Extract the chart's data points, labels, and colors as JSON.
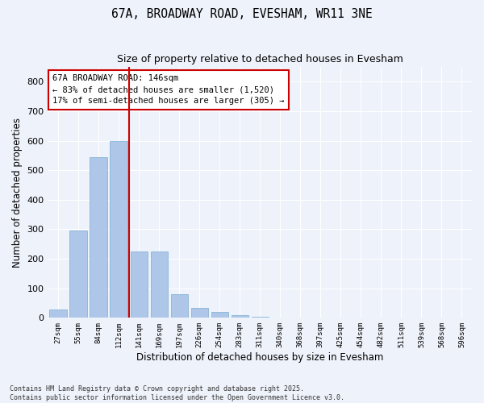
{
  "title": "67A, BROADWAY ROAD, EVESHAM, WR11 3NE",
  "subtitle": "Size of property relative to detached houses in Evesham",
  "xlabel": "Distribution of detached houses by size in Evesham",
  "ylabel": "Number of detached properties",
  "bar_color": "#aec6e8",
  "bar_edge_color": "#7aadd4",
  "background_color": "#eef2fa",
  "grid_color": "#ffffff",
  "bins": [
    "27sqm",
    "55sqm",
    "84sqm",
    "112sqm",
    "141sqm",
    "169sqm",
    "197sqm",
    "226sqm",
    "254sqm",
    "283sqm",
    "311sqm",
    "340sqm",
    "368sqm",
    "397sqm",
    "425sqm",
    "454sqm",
    "482sqm",
    "511sqm",
    "539sqm",
    "568sqm",
    "596sqm"
  ],
  "values": [
    27,
    295,
    545,
    600,
    225,
    225,
    80,
    35,
    20,
    10,
    5,
    0,
    0,
    0,
    0,
    0,
    0,
    0,
    0,
    0,
    0
  ],
  "ylim": [
    0,
    850
  ],
  "yticks": [
    0,
    100,
    200,
    300,
    400,
    500,
    600,
    700,
    800
  ],
  "vline_index": 3.5,
  "vline_color": "#cc0000",
  "annotation_title": "67A BROADWAY ROAD: 146sqm",
  "annotation_line1": "← 83% of detached houses are smaller (1,520)",
  "annotation_line2": "17% of semi-detached houses are larger (305) →",
  "annotation_box_color": "#cc0000",
  "footer_line1": "Contains HM Land Registry data © Crown copyright and database right 2025.",
  "footer_line2": "Contains public sector information licensed under the Open Government Licence v3.0.",
  "figsize": [
    6.0,
    5.0
  ],
  "dpi": 100
}
